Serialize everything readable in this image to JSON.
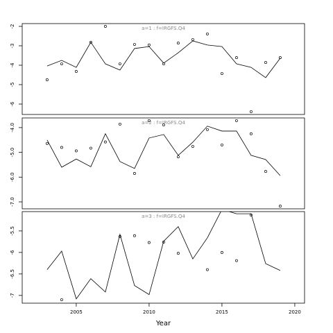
{
  "chart_data": [
    {
      "type": "line",
      "title": "a=1  :  f=IRGFS.Q4",
      "x": [
        2003,
        2004,
        2005,
        2006,
        2007,
        2008,
        2009,
        2010,
        2011,
        2012,
        2013,
        2014,
        2015,
        2016,
        2017,
        2018,
        2019
      ],
      "series": [
        {
          "type": "line",
          "color": "#000000",
          "values": [
            -4.04,
            -3.75,
            -4.11,
            -2.82,
            -3.93,
            -4.25,
            -3.14,
            -3.04,
            -3.89,
            -3.36,
            -2.75,
            -2.96,
            -3.04,
            -3.93,
            -4.11,
            -4.64,
            -3.64
          ]
        },
        {
          "type": "points",
          "color": "#000000",
          "values": [
            -4.75,
            -3.93,
            -4.32,
            -2.82,
            -2.0,
            -3.93,
            -2.93,
            -2.96,
            -3.93,
            -2.86,
            -2.68,
            -2.39,
            -4.43,
            -3.61,
            -6.39,
            -3.86,
            -3.61
          ]
        }
      ],
      "xlim": [
        2001.29,
        2020.67
      ],
      "ylim": [
        -6.536,
        -1.857
      ],
      "yticks": [
        -2,
        -3,
        -4,
        -5,
        -6
      ]
    },
    {
      "type": "line",
      "title": "a=2  :  f=IRGFS.Q4",
      "x": [
        2003,
        2004,
        2005,
        2006,
        2007,
        2008,
        2009,
        2010,
        2011,
        2012,
        2013,
        2014,
        2015,
        2016,
        2017,
        2018,
        2019
      ],
      "series": [
        {
          "type": "line",
          "color": "#000000",
          "values": [
            -4.5,
            -5.6,
            -5.27,
            -5.58,
            -4.25,
            -5.37,
            -5.65,
            -4.42,
            -4.28,
            -5.12,
            -4.59,
            -3.94,
            -4.14,
            -4.14,
            -5.12,
            -5.29,
            -5.94
          ]
        },
        {
          "type": "points",
          "color": "#000000",
          "values": [
            -4.64,
            -4.8,
            -4.94,
            -4.83,
            -4.58,
            -3.86,
            -5.85,
            -3.72,
            -3.89,
            -5.18,
            -4.76,
            -4.08,
            -4.7,
            -3.72,
            -4.25,
            -5.77,
            -7.17
          ]
        }
      ],
      "xlim": [
        2001.29,
        2020.67
      ],
      "ylim": [
        -7.28,
        -3.61
      ],
      "yticks": [
        {
          "value": -4,
          "label": "-4.0"
        },
        {
          "value": -5,
          "label": "-5.0"
        },
        {
          "value": -6,
          "label": "-6.0"
        },
        {
          "value": -7,
          "label": "-7.0"
        }
      ]
    },
    {
      "type": "line",
      "title": "a=3  :  f=IRGFS.Q4",
      "x": [
        2003,
        2004,
        2005,
        2006,
        2007,
        2008,
        2009,
        2010,
        2011,
        2012,
        2013,
        2014,
        2015,
        2016,
        2017,
        2018,
        2019
      ],
      "series": [
        {
          "type": "line",
          "color": "#000000",
          "values": [
            -6.4,
            -5.97,
            -7.08,
            -6.61,
            -6.92,
            -5.58,
            -6.77,
            -6.98,
            -5.74,
            -5.4,
            -6.15,
            -5.66,
            -5.0,
            -5.1,
            -5.1,
            -6.26,
            -6.42
          ]
        },
        {
          "type": "points",
          "color": "#000000",
          "values": [
            null,
            -7.1,
            null,
            null,
            null,
            -5.63,
            -5.61,
            -5.77,
            -5.76,
            -6.02,
            null,
            -6.4,
            -6.0,
            -6.19,
            -5.13,
            null,
            null
          ]
        }
      ],
      "xlim": [
        2001.29,
        2020.67
      ],
      "ylim": [
        -7.18,
        -5.05
      ],
      "yticks": [
        -5.5,
        -6,
        -6.5,
        -7
      ],
      "xticks": [
        2005,
        2010,
        2015,
        2020
      ],
      "xlabel": "Year"
    }
  ]
}
